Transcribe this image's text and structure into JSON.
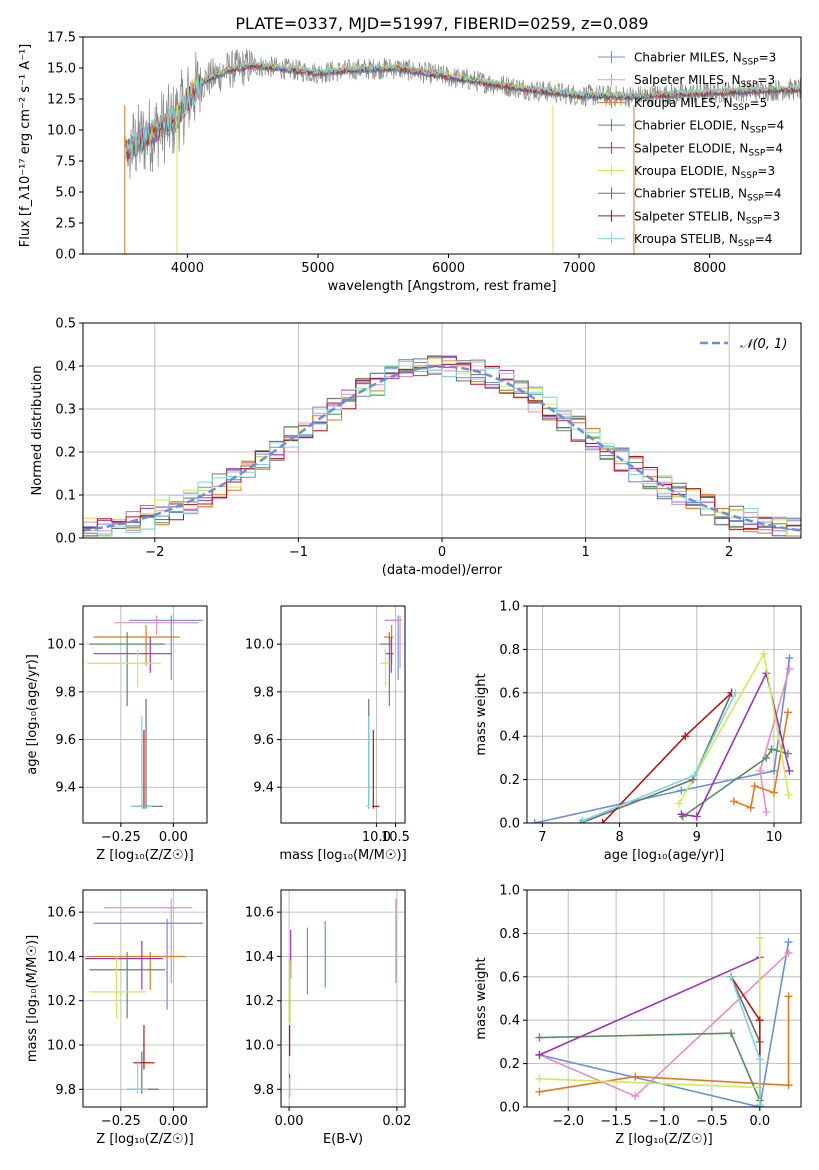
{
  "figure": {
    "title": "PLATE=0337, MJD=51997, FIBERID=0259, z=0.089"
  },
  "colors": {
    "Chabrier MILES": "#6a8fd8",
    "Salpeter MILES": "#e58fc3",
    "Kroupa MILES": "#e2791f",
    "Chabrier ELODIE": "#5c8a65",
    "Salpeter ELODIE": "#9a35b8",
    "Kroupa ELODIE": "#cfea55",
    "Chabrier STELIB": "#6f6f6f",
    "Salpeter STELIB": "#b01515",
    "Kroupa STELIB": "#7fd6dc",
    "data": "#888888",
    "grid": "#b0b0b0"
  },
  "chart_data": [
    {
      "id": "spectrum",
      "type": "line",
      "xlabel": "wavelength [Angstrom, rest frame]",
      "ylabel": "Flux [f_λ10⁻¹⁷ erg cm⁻² s⁻¹ A⁻¹]",
      "xlim": [
        3200,
        8700
      ],
      "ylim": [
        0,
        17.5
      ],
      "xticks": [
        4000,
        5000,
        6000,
        7000,
        8000
      ],
      "yticks": [
        0.0,
        2.5,
        5.0,
        7.5,
        10.0,
        12.5,
        15.0,
        17.5
      ],
      "grid": false,
      "legend_position": "right",
      "legend": [
        {
          "label": "Chabrier MILES, N",
          "sub": "SSP",
          "tail": "=3",
          "color_key": "Chabrier MILES"
        },
        {
          "label": "Salpeter MILES, N",
          "sub": "SSP",
          "tail": "=3",
          "color_key": "Salpeter MILES"
        },
        {
          "label": "Kroupa MILES, N",
          "sub": "SSP",
          "tail": "=5",
          "color_key": "Kroupa MILES"
        },
        {
          "label": "Chabrier ELODIE, N",
          "sub": "SSP",
          "tail": "=4",
          "color_key": "Chabrier ELODIE"
        },
        {
          "label": "Salpeter ELODIE, N",
          "sub": "SSP",
          "tail": "=4",
          "color_key": "Salpeter ELODIE"
        },
        {
          "label": "Kroupa ELODIE, N",
          "sub": "SSP",
          "tail": "=3",
          "color_key": "Kroupa ELODIE"
        },
        {
          "label": "Chabrier STELIB, N",
          "sub": "SSP",
          "tail": "=4",
          "color_key": "Chabrier STELIB"
        },
        {
          "label": "Salpeter STELIB, N",
          "sub": "SSP",
          "tail": "=3",
          "color_key": "Salpeter STELIB"
        },
        {
          "label": "Kroupa STELIB, N",
          "sub": "SSP",
          "tail": "=4",
          "color_key": "Kroupa STELIB"
        }
      ],
      "continuum_knots": {
        "x": [
          3520,
          3700,
          3900,
          4000,
          4100,
          4300,
          4500,
          4700,
          5000,
          5300,
          5600,
          6000,
          6300,
          6600,
          7000,
          7400,
          7800,
          8200,
          8700
        ],
        "y": [
          8.2,
          9.6,
          10.8,
          12.4,
          13.8,
          14.8,
          15.2,
          15.0,
          14.6,
          14.9,
          15.0,
          14.3,
          13.8,
          13.3,
          12.8,
          12.7,
          12.9,
          13.1,
          13.3
        ]
      },
      "spikes_to_zero": [
        3520,
        3920,
        6800,
        7420
      ]
    },
    {
      "id": "residuals",
      "type": "step",
      "xlabel": "(data-model)/error",
      "ylabel": "Normed distribution",
      "xlim": [
        -2.5,
        2.5
      ],
      "ylim": [
        0,
        0.5
      ],
      "xticks": [
        -2,
        -1,
        0,
        1,
        2
      ],
      "xtick_labels": [
        "−2",
        "−1",
        "0",
        "1",
        "2"
      ],
      "yticks": [
        0.0,
        0.1,
        0.2,
        0.3,
        0.4,
        0.5
      ],
      "grid": true,
      "legend_position": "top-right",
      "legend": [
        {
          "label": "𝒩(0, 1)",
          "color": "#6a8fd8",
          "style": "dashed"
        }
      ],
      "bin_width": 0.1
    },
    {
      "id": "age_vs_Z",
      "type": "errorbar",
      "xlabel": "Z [log₁₀(Z/Z☉)]",
      "ylabel": "age  [log₁₀(age/yr)]",
      "xlim": [
        -0.43,
        0.16
      ],
      "ylim": [
        9.25,
        10.16
      ],
      "xticks": [
        -0.25,
        0.0
      ],
      "xtick_labels": [
        "−0.25",
        "0.00"
      ],
      "yticks": [
        9.4,
        9.6,
        9.8,
        10.0
      ],
      "grid": true,
      "points": [
        {
          "key": "Chabrier MILES",
          "x": -0.01,
          "xerr": [
            0.2,
            0.15
          ],
          "y": 10.1,
          "yerr": [
            0.25,
            0.02
          ]
        },
        {
          "key": "Salpeter MILES",
          "x": -0.08,
          "xerr": [
            0.2,
            0.2
          ],
          "y": 10.09,
          "yerr": [
            0.05,
            0.03
          ]
        },
        {
          "key": "Kroupa MILES",
          "x": -0.13,
          "xerr": [
            0.25,
            0.16
          ],
          "y": 10.03,
          "yerr": [
            0.12,
            0.05
          ]
        },
        {
          "key": "Chabrier ELODIE",
          "x": -0.22,
          "xerr": [
            0.18,
            0.18
          ],
          "y": 10.0,
          "yerr": [
            0.26,
            0.05
          ]
        },
        {
          "key": "Salpeter ELODIE",
          "x": -0.11,
          "xerr": [
            0.27,
            0.1
          ],
          "y": 9.96,
          "yerr": [
            0.08,
            0.07
          ]
        },
        {
          "key": "Kroupa ELODIE",
          "x": -0.17,
          "xerr": [
            0.24,
            0.11
          ],
          "y": 9.92,
          "yerr": [
            0.1,
            0.06
          ]
        },
        {
          "key": "Chabrier STELIB",
          "x": -0.13,
          "xerr": [
            0.07,
            0.08
          ],
          "y": 9.32,
          "yerr": [
            0.01,
            0.45
          ]
        },
        {
          "key": "Salpeter STELIB",
          "x": -0.14,
          "xerr": [
            0.02,
            0.02
          ],
          "y": 9.32,
          "yerr": [
            0.01,
            0.32
          ]
        },
        {
          "key": "Kroupa STELIB",
          "x": -0.15,
          "xerr": [
            0.05,
            0.05
          ],
          "y": 9.32,
          "yerr": [
            0.01,
            0.38
          ]
        }
      ]
    },
    {
      "id": "age_vs_mass",
      "type": "errorbar",
      "xlabel": "mass [log₁₀(M/M☉)]",
      "ylabel": "",
      "xlim": [
        7.5,
        10.75
      ],
      "ylim": [
        9.25,
        10.16
      ],
      "xticks": [
        10.0,
        10.5
      ],
      "xtick_labels": [
        "10.0",
        "10.5"
      ],
      "yticks": [
        9.4,
        9.6,
        9.8,
        10.0
      ],
      "grid": true,
      "points": [
        {
          "key": "Chabrier MILES",
          "x": 10.57,
          "xerr": [
            0.35,
            0.0
          ],
          "y": 10.1,
          "yerr": [
            0.25,
            0.02
          ]
        },
        {
          "key": "Salpeter MILES",
          "x": 10.62,
          "xerr": [
            0.35,
            0.05
          ],
          "y": 10.1,
          "yerr": [
            0.2,
            0.02
          ]
        },
        {
          "key": "Kroupa MILES",
          "x": 10.4,
          "xerr": [
            0.2,
            0.05
          ],
          "y": 10.03,
          "yerr": [
            0.12,
            0.05
          ]
        },
        {
          "key": "Chabrier ELODIE",
          "x": 10.34,
          "xerr": [
            0.25,
            0.05
          ],
          "y": 10.0,
          "yerr": [
            0.26,
            0.05
          ]
        },
        {
          "key": "Salpeter ELODIE",
          "x": 10.39,
          "xerr": [
            0.15,
            0.06
          ],
          "y": 9.96,
          "yerr": [
            0.08,
            0.07
          ]
        },
        {
          "key": "Kroupa ELODIE",
          "x": 10.24,
          "xerr": [
            0.14,
            0.1
          ],
          "y": 9.92,
          "yerr": [
            0.1,
            0.06
          ]
        },
        {
          "key": "Chabrier STELIB",
          "x": 9.8,
          "xerr": [
            0.03,
            0.02
          ],
          "y": 9.32,
          "yerr": [
            0.01,
            0.45
          ]
        },
        {
          "key": "Salpeter STELIB",
          "x": 9.92,
          "xerr": [
            0.03,
            0.16
          ],
          "y": 9.32,
          "yerr": [
            0.01,
            0.32
          ]
        },
        {
          "key": "Kroupa STELIB",
          "x": 9.8,
          "xerr": [
            0.06,
            0.02
          ],
          "y": 9.32,
          "yerr": [
            0.01,
            0.38
          ]
        }
      ]
    },
    {
      "id": "weight_vs_age",
      "type": "line",
      "xlabel": "age  [log₁₀(age/yr)]",
      "ylabel": "mass weight",
      "xlim": [
        6.8,
        10.35
      ],
      "ylim": [
        0,
        1.0
      ],
      "xticks": [
        7,
        8,
        9,
        10
      ],
      "yticks": [
        0.0,
        0.2,
        0.4,
        0.6,
        0.8,
        1.0
      ],
      "grid": true,
      "series": [
        {
          "key": "Chabrier MILES",
          "x": [
            6.9,
            8.8,
            10.0,
            10.2
          ],
          "y": [
            0.0,
            0.15,
            0.24,
            0.76
          ]
        },
        {
          "key": "Salpeter MILES",
          "x": [
            9.9,
            9.82,
            10.2
          ],
          "y": [
            0.05,
            0.24,
            0.71
          ]
        },
        {
          "key": "Kroupa MILES",
          "x": [
            9.48,
            9.7,
            9.75,
            10.0,
            10.18
          ],
          "y": [
            0.1,
            0.07,
            0.17,
            0.14,
            0.51
          ]
        },
        {
          "key": "Chabrier ELODIE",
          "x": [
            8.82,
            9.9,
            9.97,
            10.18
          ],
          "y": [
            0.03,
            0.3,
            0.34,
            0.32
          ]
        },
        {
          "key": "Salpeter ELODIE",
          "x": [
            8.8,
            9.0,
            9.9,
            10.2
          ],
          "y": [
            0.04,
            0.03,
            0.69,
            0.24
          ]
        },
        {
          "key": "Kroupa ELODIE",
          "x": [
            8.77,
            9.87,
            10.19
          ],
          "y": [
            0.09,
            0.78,
            0.13
          ]
        },
        {
          "key": "Chabrier STELIB",
          "x": [
            7.5,
            8.95,
            9.45
          ],
          "y": [
            0.0,
            0.2,
            0.6
          ]
        },
        {
          "key": "Salpeter STELIB",
          "x": [
            7.78,
            8.85,
            9.45
          ],
          "y": [
            0.0,
            0.4,
            0.6
          ]
        },
        {
          "key": "Kroupa STELIB",
          "x": [
            7.52,
            8.97,
            9.5
          ],
          "y": [
            0.01,
            0.22,
            0.6
          ]
        }
      ]
    },
    {
      "id": "mass_vs_Z",
      "type": "errorbar",
      "xlabel": "Z [log₁₀(Z/Z☉)]",
      "ylabel": "mass [log₁₀(M/M☉)]",
      "xlim": [
        -0.43,
        0.16
      ],
      "ylim": [
        9.72,
        10.7
      ],
      "xticks": [
        -0.25,
        0.0
      ],
      "xtick_labels": [
        "−0.25",
        "0.00"
      ],
      "yticks": [
        9.8,
        10.0,
        10.2,
        10.4,
        10.6
      ],
      "grid": true,
      "points": [
        {
          "key": "Salpeter MILES",
          "x": -0.01,
          "xerr": [
            0.32,
            0.1
          ],
          "y": 10.62,
          "yerr": [
            0.34,
            0.04
          ]
        },
        {
          "key": "Chabrier MILES",
          "x": -0.03,
          "xerr": [
            0.35,
            0.17
          ],
          "y": 10.55,
          "yerr": [
            0.39,
            0.02
          ]
        },
        {
          "key": "Kroupa MILES",
          "x": -0.11,
          "xerr": [
            0.3,
            0.17
          ],
          "y": 10.4,
          "yerr": [
            0.15,
            0.02
          ]
        },
        {
          "key": "Salpeter ELODIE",
          "x": -0.15,
          "xerr": [
            0.27,
            0.1
          ],
          "y": 10.39,
          "yerr": [
            0.14,
            0.08
          ]
        },
        {
          "key": "Chabrier ELODIE",
          "x": -0.22,
          "xerr": [
            0.18,
            0.18
          ],
          "y": 10.34,
          "yerr": [
            0.22,
            0.08
          ]
        },
        {
          "key": "Kroupa ELODIE",
          "x": -0.27,
          "xerr": [
            0.13,
            0.14
          ],
          "y": 10.24,
          "yerr": [
            0.12,
            0.16
          ]
        },
        {
          "key": "Salpeter STELIB",
          "x": -0.14,
          "xerr": [
            0.05,
            0.05
          ],
          "y": 9.92,
          "yerr": [
            0.03,
            0.17
          ]
        },
        {
          "key": "Chabrier STELIB",
          "x": -0.15,
          "xerr": [
            0.07,
            0.08
          ],
          "y": 9.8,
          "yerr": [
            0.02,
            0.17
          ]
        },
        {
          "key": "Kroupa STELIB",
          "x": -0.17,
          "xerr": [
            0.05,
            0.05
          ],
          "y": 9.8,
          "yerr": [
            0.02,
            0.13
          ]
        }
      ]
    },
    {
      "id": "mass_vs_ebv",
      "type": "errorbar",
      "xlabel": "E(B-V)",
      "ylabel": "",
      "xlim": [
        -0.0015,
        0.0215
      ],
      "ylim": [
        9.72,
        10.7
      ],
      "xticks": [
        0.0,
        0.02
      ],
      "xtick_labels": [
        "0.00",
        "0.02"
      ],
      "yticks": [
        9.8,
        10.0,
        10.2,
        10.4,
        10.6
      ],
      "grid": true,
      "points": [
        {
          "key": "Salpeter MILES",
          "x": 0.0198,
          "y": 10.5,
          "yerr": [
            0.22,
            0.16
          ]
        },
        {
          "key": "Chabrier MILES",
          "x": 0.0067,
          "y": 10.42,
          "yerr": [
            0.16,
            0.14
          ]
        },
        {
          "key": "Kroupa MILES",
          "x": 0.0034,
          "y": 10.38,
          "yerr": [
            0.15,
            0.15
          ]
        },
        {
          "key": "Salpeter ELODIE",
          "x": 0.0003,
          "y": 10.42,
          "yerr": [
            0.12,
            0.1
          ]
        },
        {
          "key": "Kroupa ELODIE",
          "x": 0.0002,
          "y": 10.24,
          "yerr": [
            0.14,
            0.14
          ]
        },
        {
          "key": "Salpeter STELIB",
          "x": 0.0001,
          "y": 10.02,
          "yerr": [
            0.07,
            0.07
          ]
        },
        {
          "key": "Chabrier STELIB",
          "x": 0.0001,
          "y": 9.82,
          "yerr": [
            0.05,
            0.05
          ]
        },
        {
          "key": "Kroupa STELIB",
          "x": 0.0001,
          "y": 9.8,
          "yerr": [
            0.04,
            0.05
          ]
        }
      ]
    },
    {
      "id": "weight_vs_Z",
      "type": "line",
      "xlabel": "Z [log₁₀(Z/Z☉)]",
      "ylabel": "mass weight",
      "xlim": [
        -2.43,
        0.43
      ],
      "ylim": [
        0,
        1.0
      ],
      "xticks": [
        -2.0,
        -1.5,
        -1.0,
        -0.5,
        0.0
      ],
      "xtick_labels": [
        "−2.0",
        "−1.5",
        "−1.0",
        "−0.5",
        "0.0"
      ],
      "yticks": [
        0.0,
        0.2,
        0.4,
        0.6,
        0.8,
        1.0
      ],
      "grid": true,
      "series": [
        {
          "key": "Chabrier MILES",
          "x": [
            -2.3,
            0.0,
            0.3
          ],
          "y": [
            0.24,
            0.0,
            0.76
          ]
        },
        {
          "key": "Salpeter MILES",
          "x": [
            -2.3,
            -1.3,
            0.3
          ],
          "y": [
            0.24,
            0.05,
            0.71
          ]
        },
        {
          "key": "Kroupa MILES",
          "x": [
            -2.3,
            -1.3,
            0.3,
            0.3
          ],
          "y": [
            0.07,
            0.14,
            0.1,
            0.51
          ]
        },
        {
          "key": "Chabrier ELODIE",
          "x": [
            -2.3,
            -0.3,
            0.0
          ],
          "y": [
            0.32,
            0.34,
            0.03
          ]
        },
        {
          "key": "Salpeter ELODIE",
          "x": [
            -2.3,
            0.0
          ],
          "y": [
            0.24,
            0.69
          ]
        },
        {
          "key": "Kroupa ELODIE",
          "x": [
            -2.3,
            0.0,
            0.0
          ],
          "y": [
            0.13,
            0.09,
            0.78
          ]
        },
        {
          "key": "Chabrier STELIB",
          "x": [
            -0.3,
            0.0,
            0.0
          ],
          "y": [
            0.6,
            0.3,
            0.0
          ]
        },
        {
          "key": "Salpeter STELIB",
          "x": [
            -0.3,
            0.0,
            0.0
          ],
          "y": [
            0.6,
            0.4,
            0.0
          ]
        },
        {
          "key": "Kroupa STELIB",
          "x": [
            -0.3,
            0.0,
            0.0
          ],
          "y": [
            0.6,
            0.22,
            0.01
          ]
        }
      ]
    }
  ]
}
